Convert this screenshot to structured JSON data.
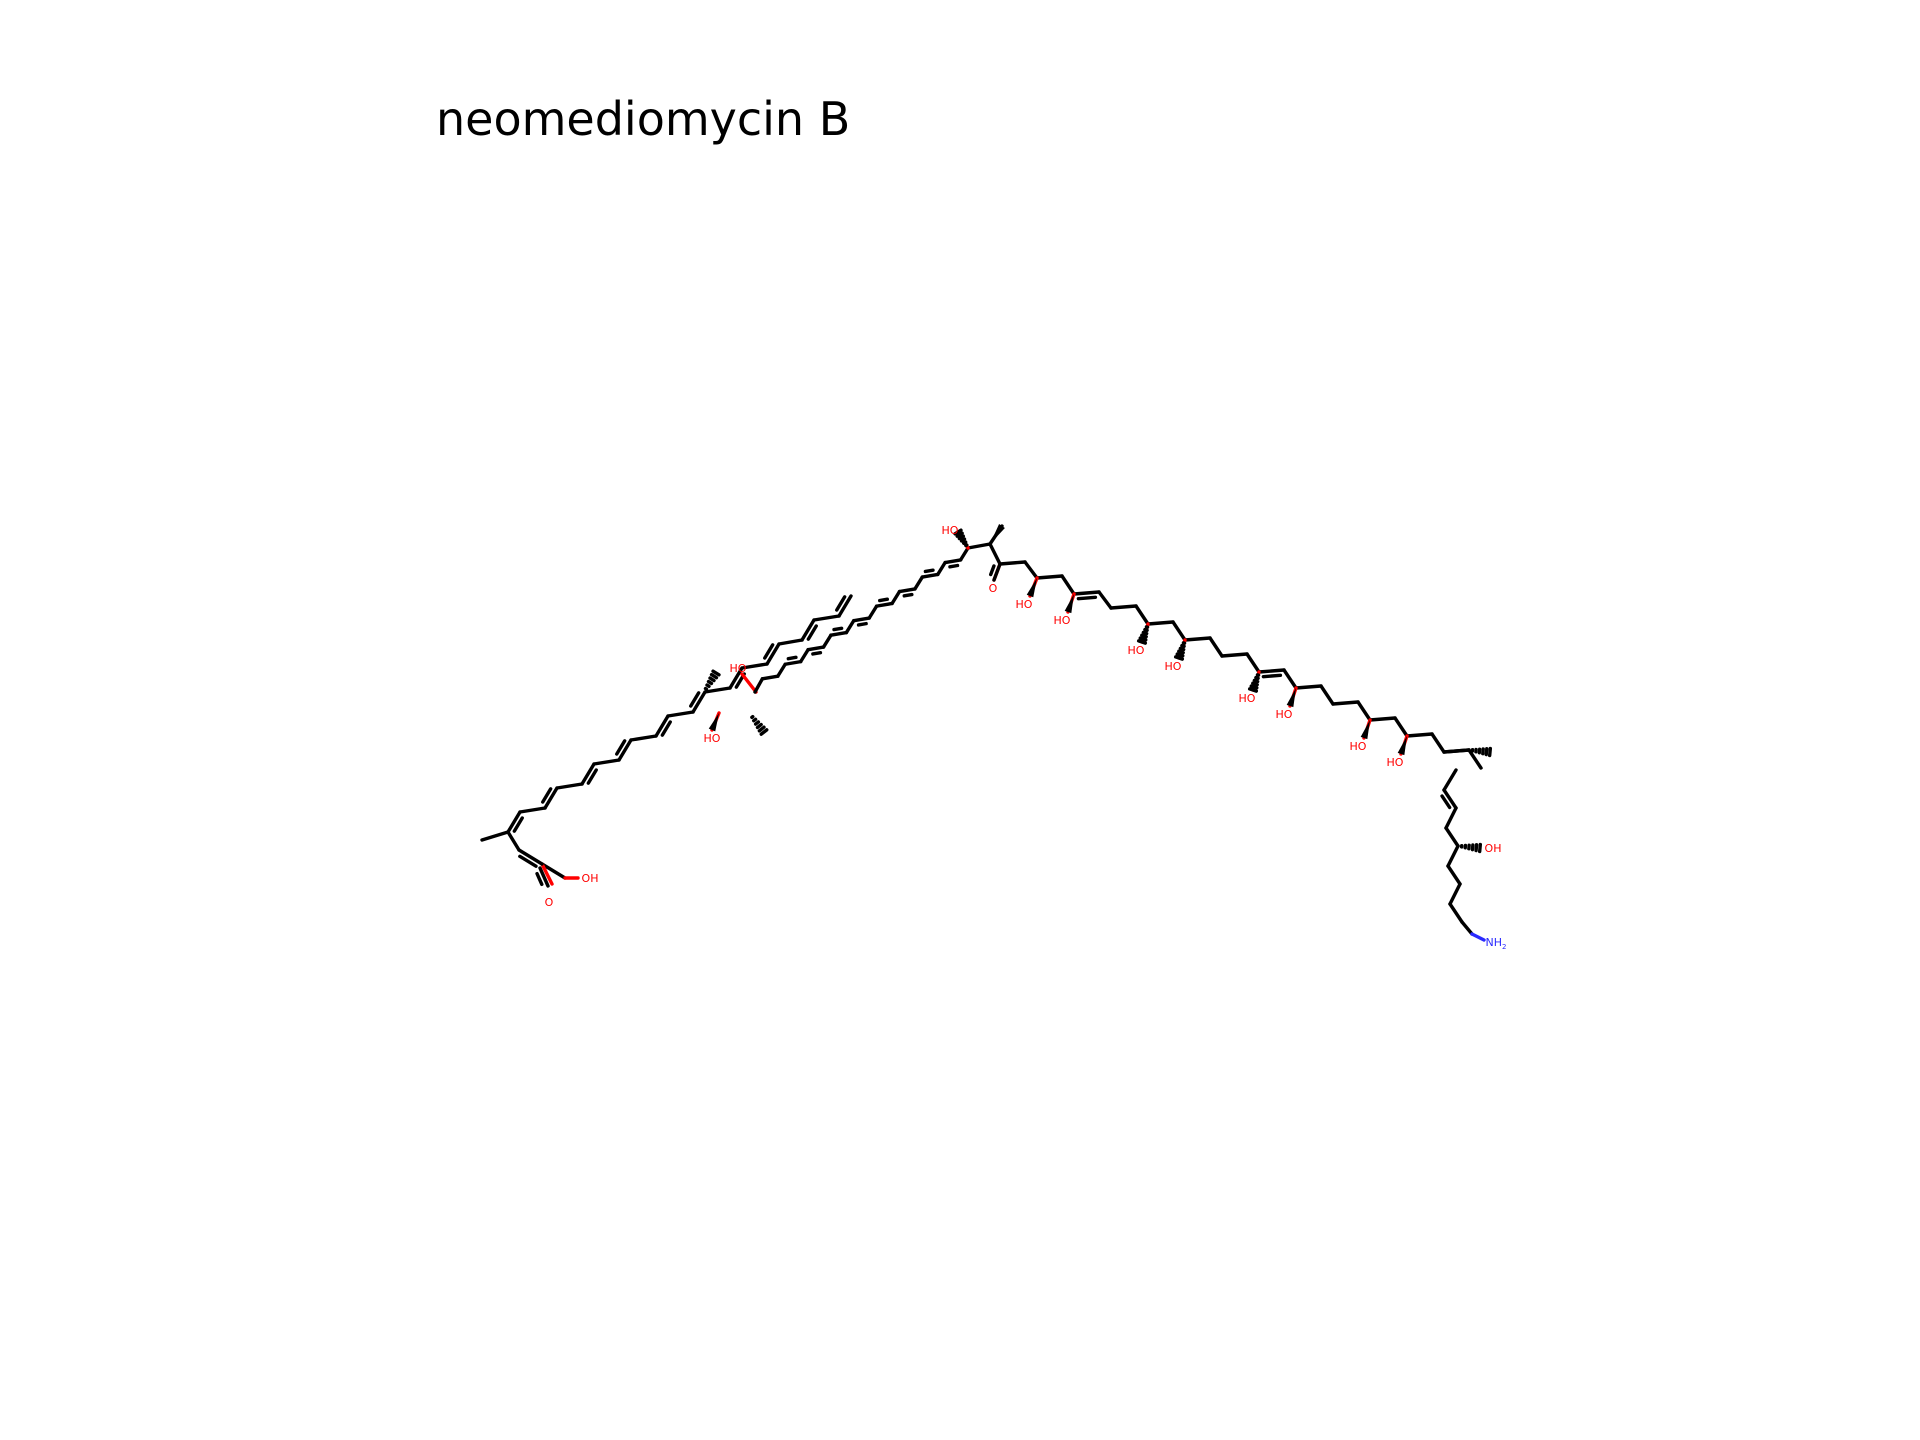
{
  "title": "neomediomycin B",
  "molecule": {
    "hydroxyl_label": "HO",
    "hydroxyl_label_right": "OH",
    "carbonyl_label": "O",
    "amine_label": "NH",
    "amine_subscript": "2",
    "colors": {
      "carbon": "#000000",
      "oxygen": "#ff0000",
      "nitrogen": "#2a2aff"
    }
  }
}
